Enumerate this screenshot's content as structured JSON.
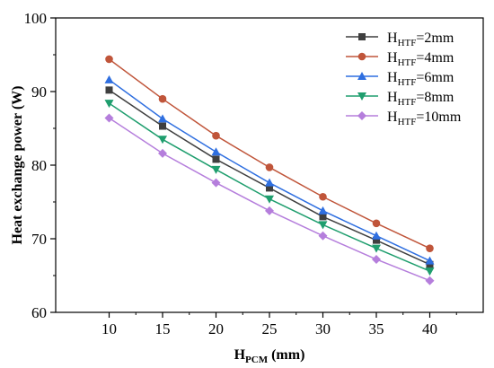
{
  "chart_data": {
    "type": "line",
    "x": [
      10,
      15,
      20,
      25,
      30,
      35,
      40
    ],
    "xlim": [
      5,
      45
    ],
    "ylim": [
      60,
      100
    ],
    "xticks": [
      "10",
      "15",
      "20",
      "25",
      "30",
      "35",
      "40"
    ],
    "yticks": [
      "60",
      "70",
      "80",
      "90",
      "100"
    ],
    "xlabel": {
      "main": "H",
      "sub": "PCM",
      "rest": " (mm)"
    },
    "ylabel": "Heat exchange power (W)",
    "grid": false,
    "legend_position": "top-right",
    "series": [
      {
        "name_main": "H",
        "name_sub": "HTF",
        "name_rest": "=2mm",
        "color": "#3f3f3f",
        "marker": "square",
        "values": [
          90.2,
          85.3,
          80.8,
          76.9,
          73.0,
          69.8,
          66.5
        ]
      },
      {
        "name_main": "H",
        "name_sub": "HTF",
        "name_rest": "=4mm",
        "color": "#c0553a",
        "marker": "circle",
        "values": [
          94.4,
          89.0,
          84.0,
          79.7,
          75.7,
          72.1,
          68.7
        ]
      },
      {
        "name_main": "H",
        "name_sub": "HTF",
        "name_rest": "=6mm",
        "color": "#2f6fe0",
        "marker": "triangle-up",
        "values": [
          91.6,
          86.3,
          81.8,
          77.6,
          73.8,
          70.4,
          67.0
        ]
      },
      {
        "name_main": "H",
        "name_sub": "HTF",
        "name_rest": "=8mm",
        "color": "#1f9e6e",
        "marker": "triangle-down",
        "values": [
          88.4,
          83.5,
          79.4,
          75.4,
          71.9,
          68.7,
          65.6
        ]
      },
      {
        "name_main": "H",
        "name_sub": "HTF",
        "name_rest": "=10mm",
        "color": "#b57edc",
        "marker": "diamond",
        "values": [
          86.4,
          81.6,
          77.6,
          73.8,
          70.4,
          67.2,
          64.3
        ]
      }
    ]
  }
}
